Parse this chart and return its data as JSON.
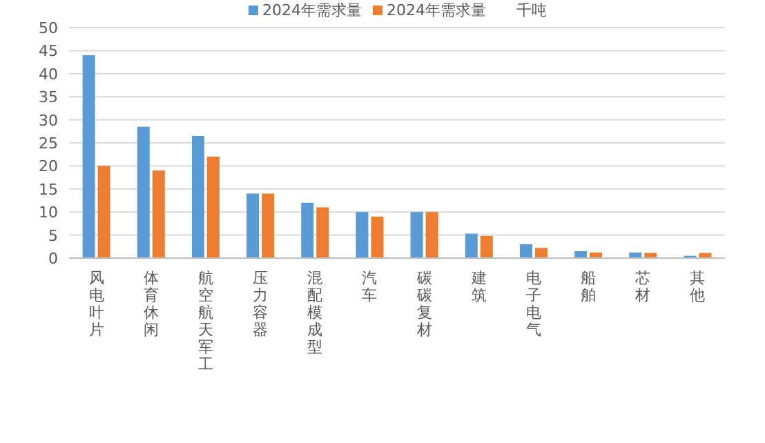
{
  "chart_data": {
    "type": "bar",
    "categories": [
      "风电叶片",
      "体育休闲",
      "航空航天军工",
      "压力容器",
      "混配模成型",
      "汽车",
      "碳碳复材",
      "建筑",
      "电子电气",
      "船舶",
      "芯材",
      "其他"
    ],
    "series": [
      {
        "name": "2024年需求量",
        "color": "#5b9bd5",
        "values": [
          44,
          28.5,
          26.5,
          14,
          12,
          10,
          10,
          5.3,
          3,
          1.5,
          1.2,
          0.5
        ]
      },
      {
        "name": "2024年需求量",
        "color": "#ed7d31",
        "values": [
          20,
          19,
          22,
          14,
          11,
          9,
          10,
          4.8,
          2.2,
          1.2,
          1.1,
          1.1
        ]
      }
    ],
    "ylabel": "千吨",
    "ylim": [
      0,
      50
    ],
    "yticks": [
      0,
      5,
      10,
      15,
      20,
      25,
      30,
      35,
      40,
      45,
      50
    ],
    "grid": "y",
    "legend": "top"
  }
}
